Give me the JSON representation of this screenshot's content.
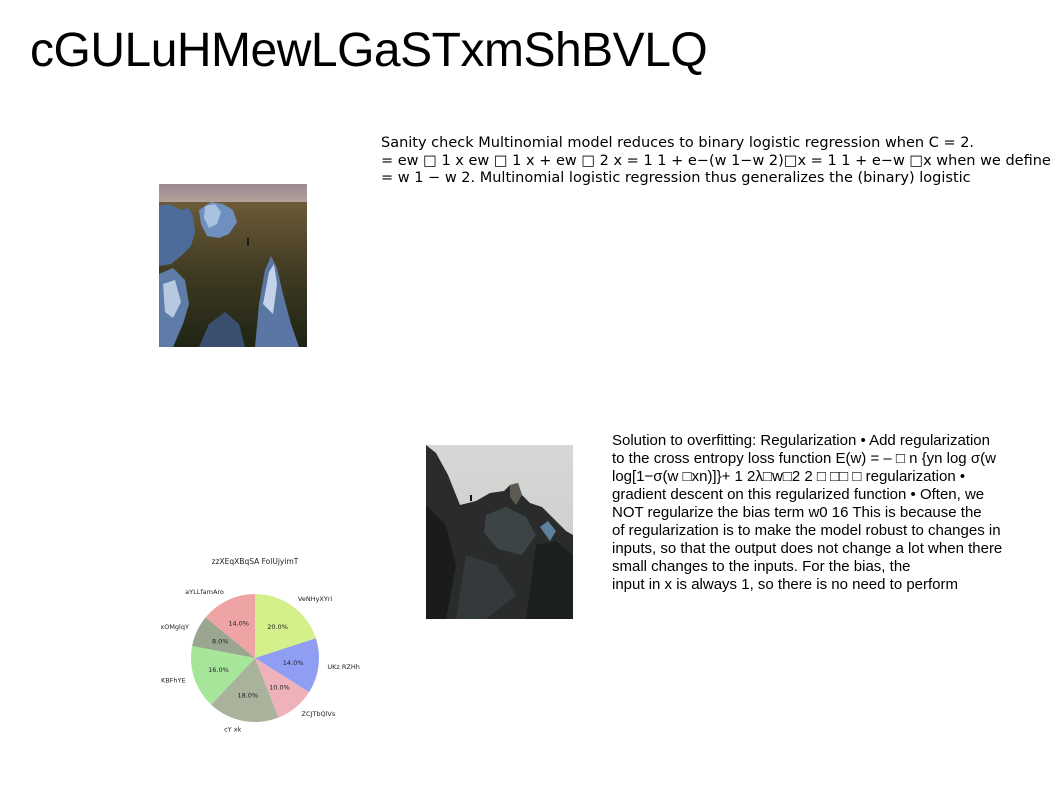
{
  "title": "cGULuHMewLGaSTxmShBVLQ",
  "text_block_1": {
    "lines": [
      "Sanity check Multinomial model reduces to binary logistic regression when C = 2.",
      "= ew □ 1 x ew □ 1 x + ew □ 2 x = 1 1 + e−(w 1−w 2)□x = 1 1 + e−w □x when we define",
      "= w 1 − w 2. Multinomial logistic regression thus generalizes the (binary) logistic"
    ]
  },
  "text_block_2": {
    "lines": [
      "Solution to overfitting: Regularization • Add regularization",
      "to the cross entropy loss function E(w) = – □ n {yn log σ(w",
      "log[1−σ(w □xn)]}+ 1 2λ□w□2 2 □ □□ □ regularization •",
      "gradient descent on this regularized function • Often, we",
      "NOT regularize the bias term w0 16 This is because the",
      "of regularization is to make the model robust to changes in",
      "inputs, so that the output does not change a lot when there",
      "small changes to the inputs. For the bias, the",
      "input in x is always 1, so there is no need to perform"
    ]
  },
  "chart_data": {
    "type": "pie",
    "title": "zzXEqXBqSA FolUjyimT",
    "slices": [
      {
        "label": "VeNHyXYri",
        "value": 20.0,
        "label_text": "20.0%",
        "color": "#d4f08a"
      },
      {
        "label": "UKz RZHh",
        "value": 14.0,
        "label_text": "14.0%",
        "color": "#8f9ef2"
      },
      {
        "label": "ZCJTbQlVs",
        "value": 10.0,
        "label_text": "10.0%",
        "color": "#efb2ba"
      },
      {
        "label": "cY xk",
        "value": 18.0,
        "label_text": "18.0%",
        "color": "#a9b29a"
      },
      {
        "label": "KBFhYE",
        "value": 16.0,
        "label_text": "16.0%",
        "color": "#a6e69a"
      },
      {
        "label": "xOMglqY",
        "value": 8.0,
        "label_text": "8.0%",
        "color": "#9aa690"
      },
      {
        "label": "aYLLfamAro",
        "value": 14.0,
        "label_text": "14.0%",
        "color": "#eea4a4"
      }
    ],
    "start_angle_deg": 90,
    "direction": "clockwise"
  }
}
